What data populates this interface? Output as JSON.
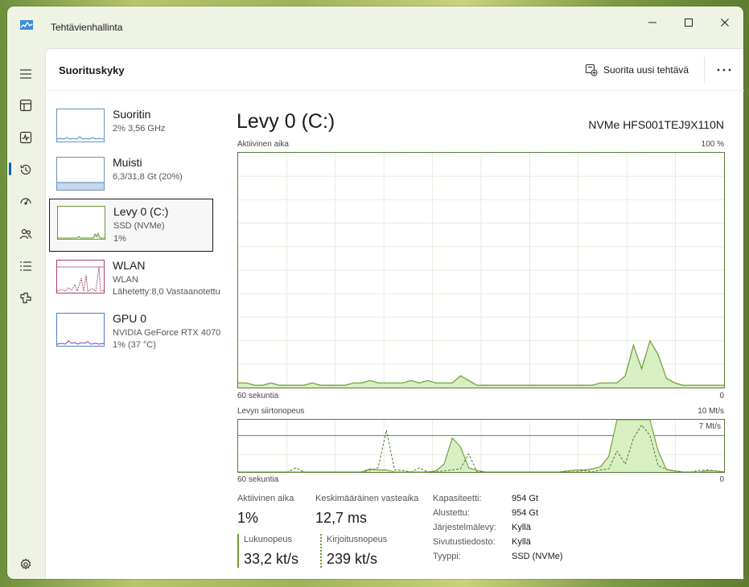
{
  "window": {
    "title": "Tehtävienhallinta",
    "accent": "#0067c0"
  },
  "nav": {
    "items": [
      {
        "icon": "hamburger-menu-icon"
      },
      {
        "icon": "processes-icon"
      },
      {
        "icon": "performance-icon",
        "selected": true
      },
      {
        "icon": "app-history-icon"
      },
      {
        "icon": "startup-apps-icon"
      },
      {
        "icon": "users-icon"
      },
      {
        "icon": "details-icon"
      },
      {
        "icon": "services-icon"
      },
      {
        "icon": "settings-icon"
      }
    ]
  },
  "header": {
    "title": "Suorituskyky",
    "run_task_label": "Suorita uusi tehtävä",
    "more_label": "..."
  },
  "devices": [
    {
      "name": "Suoritin",
      "line1": "2% 3,56 GHz",
      "line2": ""
    },
    {
      "name": "Muisti",
      "line1": "6,3/31,8 Gt (20%)",
      "line2": ""
    },
    {
      "name": "Levy 0 (C:)",
      "line1": "SSD (NVMe)",
      "line2": "1%"
    },
    {
      "name": "WLAN",
      "line1": "WLAN",
      "line2": "Lähetetty:8,0 Vastaanotettu"
    },
    {
      "name": "GPU 0",
      "line1": "NVIDIA GeForce RTX 4070",
      "line2": "1% (37 °C)"
    }
  ],
  "detail": {
    "title": "Levy 0 (C:)",
    "model": "NVMe HFS001TEJ9X110N",
    "graph1": {
      "label": "Aktiivinen aika",
      "max_label": "100 %",
      "time_label": "60 sekuntia",
      "zero_label": "0",
      "series_color": "#6b9a2e",
      "fill_color": "#d8efc4",
      "values": [
        2,
        2,
        1,
        1,
        2,
        1,
        1,
        1,
        1,
        2,
        1,
        1,
        1,
        1,
        2,
        2,
        3,
        2,
        2,
        2,
        2,
        3,
        2,
        3,
        2,
        2,
        2,
        5,
        3,
        1,
        1,
        1,
        1,
        1,
        1,
        1,
        1,
        1,
        1,
        1,
        1,
        1,
        1,
        1,
        2,
        2,
        2,
        5,
        18,
        8,
        20,
        14,
        4,
        2,
        1,
        1,
        1,
        1,
        1,
        1
      ]
    },
    "graph2": {
      "label": "Levyn siirtonopeus",
      "max_label": "10 Mt/s",
      "line_label": "7 Mt/s",
      "time_label": "60 sekuntia",
      "zero_label": "0",
      "max_value": 10,
      "line_value": 7,
      "read_values": [
        0,
        0,
        0,
        0,
        0,
        0,
        0,
        0,
        0,
        0,
        0,
        0,
        0,
        0,
        0,
        0,
        0.6,
        0.4,
        0.4,
        0,
        0,
        0,
        0,
        0,
        0.2,
        1.5,
        6.5,
        4.8,
        0.8,
        0.3,
        0,
        0,
        0,
        0,
        0,
        0,
        0,
        0,
        0,
        0,
        0.2,
        0.4,
        0.4,
        0.6,
        1,
        3,
        10,
        10,
        10,
        10,
        10,
        4,
        0.5,
        0.2,
        0,
        0,
        0,
        0.2,
        0.2,
        0
      ],
      "write_values": [
        0,
        0,
        0,
        0,
        0,
        0,
        0,
        0.8,
        0,
        0,
        0,
        0,
        0,
        0,
        0,
        0,
        0.3,
        0.8,
        8,
        0.4,
        0.3,
        0,
        0.8,
        0,
        0,
        0.2,
        0.4,
        0.6,
        3.5,
        0,
        0,
        0,
        0,
        0,
        0,
        0,
        0,
        0,
        0,
        0,
        0,
        0,
        0.3,
        0,
        0.4,
        0.6,
        4,
        1.5,
        6.5,
        9,
        7,
        1.2,
        0.5,
        0.2,
        0,
        0,
        0.3,
        0.4,
        0.2,
        0
      ]
    },
    "stats": {
      "active_time_label": "Aktiivinen aika",
      "active_time_value": "1%",
      "avg_response_label": "Keskimääräinen vasteaika",
      "avg_response_value": "12,7 ms",
      "read_speed_label": "Lukunopeus",
      "read_speed_value": "33,2 kt/s",
      "write_speed_label": "Kirjoitusnopeus",
      "write_speed_value": "239 kt/s"
    },
    "properties": [
      {
        "label": "Kapasiteetti:",
        "value": "954 Gt"
      },
      {
        "label": "Alustettu:",
        "value": "954 Gt"
      },
      {
        "label": "Järjestelmälevy:",
        "value": "Kyllä"
      },
      {
        "label": "Sivutustiedosto:",
        "value": "Kyllä"
      },
      {
        "label": "Tyyppi:",
        "value": "SSD (NVMe)"
      }
    ]
  }
}
